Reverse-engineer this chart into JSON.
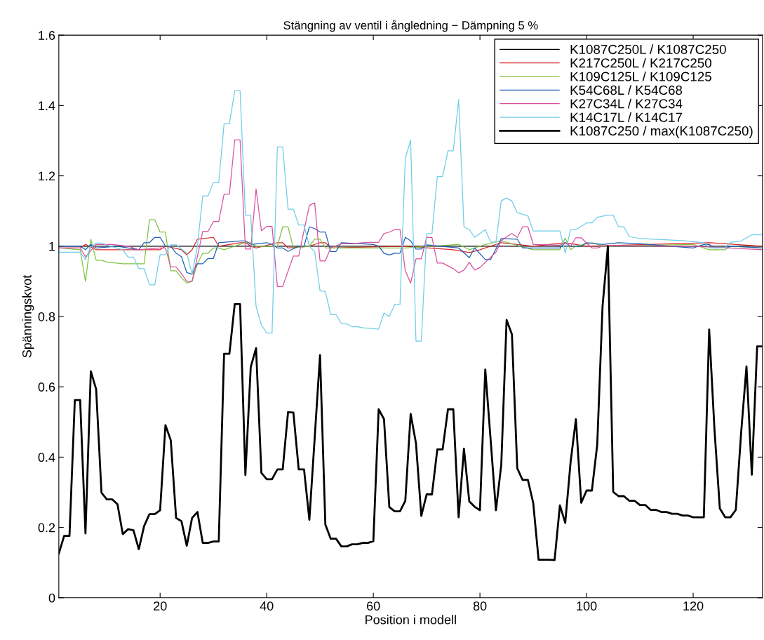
{
  "chart_data": {
    "type": "line",
    "title": "Stängning av ventil i ångledning − Dämpning 5 %",
    "xlabel": "Position i modell",
    "ylabel": "Spänningskvot",
    "xlim": [
      1,
      133
    ],
    "xticks": [
      20,
      40,
      60,
      80,
      100,
      120
    ],
    "ylim": [
      0,
      1.6
    ],
    "yticks": [
      0,
      0.2,
      0.4,
      0.6,
      0.8,
      1,
      1.2,
      1.4,
      1.6
    ],
    "grid": false,
    "legend": "top right",
    "marker": "none",
    "line_style": "solid",
    "series": [
      {
        "name": "K1087C250L / K1087C250",
        "color": "#000000",
        "x": [
          1,
          30,
          60,
          90,
          104,
          133
        ],
        "values": [
          1,
          1,
          1,
          1,
          1,
          1
        ]
      },
      {
        "name": "K217C250L / K217C250",
        "color": "#d62828",
        "x": [
          1,
          5,
          6,
          8,
          20,
          21,
          24,
          25,
          26,
          27,
          30,
          31,
          35,
          36,
          37,
          38,
          42,
          43,
          44,
          48,
          50,
          51,
          52,
          66,
          75,
          78,
          80,
          84,
          90,
          96,
          100,
          123,
          128,
          133
        ],
        "values": [
          0.995,
          0.995,
          1.005,
          0.99,
          0.99,
          1.0,
          0.99,
          0.975,
          0.99,
          1.02,
          1.025,
          1.0,
          1.01,
          1.01,
          1.0,
          0.995,
          1.01,
          1.01,
          0.995,
          1.0,
          1.01,
          1.01,
          0.995,
          1.0,
          0.99,
          0.982,
          0.99,
          1.01,
          1.0,
          1.01,
          1.0,
          1.01,
          1.005,
          1.0
        ]
      },
      {
        "name": "K109C125L / K109C125",
        "color": "#7fc241",
        "x": [
          1,
          5,
          6,
          7,
          8,
          9,
          10,
          13,
          17,
          18,
          19,
          20,
          21,
          22,
          23,
          24,
          25,
          26,
          27,
          28,
          29,
          30,
          31,
          32,
          36,
          37,
          38,
          42,
          43,
          44,
          45,
          48,
          49,
          50,
          51,
          66,
          76,
          78,
          81,
          84,
          90,
          95,
          96,
          97,
          98,
          101,
          103,
          120,
          123,
          126,
          127,
          133
        ],
        "values": [
          0.995,
          0.99,
          0.9,
          1.02,
          0.96,
          0.96,
          0.955,
          0.95,
          0.95,
          1.075,
          1.075,
          1.04,
          1.04,
          0.93,
          0.93,
          0.91,
          0.895,
          0.9,
          0.95,
          0.98,
          0.98,
          0.995,
          0.995,
          0.99,
          1.01,
          1.01,
          1.0,
          1.0,
          1.055,
          1.055,
          0.995,
          1.0,
          1.02,
          1.02,
          0.995,
          0.995,
          1.005,
          0.99,
          1.005,
          1.015,
          0.99,
          0.99,
          1.023,
          0.99,
          1.0,
          1.01,
          1.0,
          1.005,
          0.99,
          0.99,
          1.0,
          0.995
        ]
      },
      {
        "name": "K54C68L / K54C68",
        "color": "#1f5fb5",
        "x": [
          1,
          5,
          6,
          7,
          8,
          12,
          16,
          17,
          18,
          19,
          20,
          21,
          22,
          23,
          24,
          25,
          26,
          27,
          28,
          29,
          30,
          31,
          35,
          36,
          37,
          40,
          41,
          42,
          43,
          44,
          46,
          47,
          48,
          49,
          50,
          51,
          52,
          53,
          54,
          60,
          61,
          62,
          63,
          64,
          65,
          66,
          67,
          68,
          69,
          70,
          76,
          78,
          79,
          81,
          82,
          84,
          87,
          88,
          95,
          96,
          97,
          99,
          100,
          103,
          106,
          110,
          120,
          122,
          123,
          124,
          128,
          133
        ],
        "values": [
          1.0,
          1.0,
          0.99,
          1.005,
          0.995,
          1.0,
          0.99,
          1.01,
          1.01,
          1.025,
          1.025,
          1.0,
          1.0,
          0.98,
          0.97,
          0.925,
          0.92,
          0.95,
          0.95,
          0.965,
          0.965,
          1.01,
          1.015,
          1.015,
          1.005,
          1.01,
          1.005,
          0.995,
          0.995,
          0.985,
          1.0,
          1.0,
          1.055,
          1.05,
          1.04,
          1.04,
          0.985,
          0.985,
          1.01,
          1.005,
          1.0,
          0.98,
          0.975,
          0.98,
          0.98,
          1.025,
          1.015,
          0.992,
          0.992,
          1.004,
          0.995,
          0.967,
          0.995,
          0.962,
          0.962,
          1.022,
          1.02,
          0.995,
          0.995,
          1.01,
          1.0,
          1.0,
          1.01,
          1.005,
          1.01,
          1.007,
          0.995,
          1.005,
          1.005,
          0.995,
          1.0,
          0.995
        ]
      },
      {
        "name": "K27C34L / K27C34",
        "color": "#d9509f",
        "x": [
          1,
          5,
          6,
          8,
          11,
          14,
          16,
          20,
          21,
          22,
          23,
          24,
          25,
          26,
          28,
          29,
          30,
          31,
          32,
          33,
          34,
          35,
          36,
          37,
          38,
          39,
          40,
          41,
          42,
          43,
          45,
          46,
          48,
          49,
          50,
          51,
          52,
          54,
          56,
          59,
          61,
          62,
          63,
          64,
          65,
          66,
          67,
          68,
          69,
          70,
          71,
          72,
          73,
          74,
          75,
          76,
          77,
          78,
          79,
          80,
          81,
          83,
          84,
          85,
          86,
          87,
          88,
          89,
          90,
          95,
          96,
          97,
          98,
          99,
          100,
          101,
          102,
          103,
          104,
          120,
          133
        ],
        "values": [
          0.995,
          0.995,
          0.97,
          1.005,
          1.005,
          1.0,
          0.99,
          0.995,
          0.995,
          0.941,
          0.941,
          0.922,
          0.9,
          0.9,
          1.042,
          1.042,
          1.07,
          1.07,
          1.148,
          1.148,
          1.302,
          1.302,
          0.992,
          0.992,
          1.163,
          1.044,
          1.056,
          1.056,
          0.885,
          0.885,
          0.972,
          0.972,
          1.116,
          1.123,
          0.958,
          0.958,
          0.995,
          1.007,
          1.007,
          1.011,
          1.011,
          1.036,
          1.04,
          1.047,
          1.047,
          0.93,
          0.895,
          0.964,
          0.964,
          1.025,
          1.025,
          0.952,
          0.952,
          0.944,
          0.936,
          0.924,
          0.932,
          0.954,
          0.932,
          0.939,
          0.954,
          0.983,
          1.015,
          1.027,
          1.036,
          1.025,
          1.055,
          1.055,
          1.005,
          1.003,
          1.009,
          1.0,
          1.024,
          1.024,
          1.009,
          0.995,
          0.995,
          1.0,
          1.002,
          1.0,
          0.99
        ]
      },
      {
        "name": "K14C17L / K14C17",
        "color": "#6fcde8",
        "x": [
          1,
          5,
          6,
          7,
          8,
          9,
          10,
          13,
          14,
          15,
          16,
          17,
          18,
          19,
          20,
          21,
          22,
          23,
          25,
          26,
          27,
          28,
          29,
          30,
          31,
          32,
          33,
          34,
          35,
          36,
          37,
          38,
          39,
          40,
          41,
          42,
          43,
          44,
          45,
          46,
          47,
          48,
          49,
          50,
          51,
          52,
          53,
          54,
          55,
          56,
          57,
          58,
          59,
          61,
          62,
          63,
          64,
          65,
          66,
          67,
          68,
          69,
          70,
          71,
          72,
          73,
          74,
          75,
          76,
          77,
          78,
          79,
          81,
          82,
          83,
          84,
          85,
          86,
          87,
          89,
          90,
          95,
          96,
          97,
          98,
          100,
          101,
          102,
          103,
          104,
          105,
          106,
          107,
          108,
          110,
          114,
          118,
          122,
          123,
          126,
          127,
          129,
          131,
          133
        ],
        "values": [
          0.983,
          0.983,
          0.962,
          0.998,
          1.009,
          1.009,
          1.003,
          0.99,
          0.969,
          0.969,
          0.936,
          0.936,
          0.89,
          0.89,
          0.976,
          0.976,
          1.004,
          1.004,
          0.98,
          0.92,
          1.0,
          1.143,
          1.143,
          1.181,
          1.181,
          1.348,
          1.348,
          1.442,
          1.442,
          1.088,
          1.088,
          0.829,
          0.776,
          0.753,
          0.753,
          1.282,
          1.282,
          1.105,
          1.105,
          1.06,
          1.06,
          1.0,
          0.984,
          0.873,
          0.871,
          0.805,
          0.805,
          0.78,
          0.779,
          0.771,
          0.771,
          0.768,
          0.767,
          0.764,
          0.81,
          0.8,
          0.834,
          0.834,
          1.25,
          1.302,
          0.73,
          0.73,
          1.035,
          1.036,
          1.198,
          1.198,
          1.271,
          1.271,
          1.417,
          1.055,
          1.047,
          1.025,
          1.047,
          1.012,
          1.012,
          1.129,
          1.137,
          1.128,
          1.095,
          1.086,
          1.043,
          1.043,
          0.981,
          1.047,
          1.047,
          1.066,
          1.066,
          1.082,
          1.085,
          1.088,
          1.088,
          1.055,
          1.055,
          1.027,
          1.022,
          1.019,
          1.016,
          1.01,
          0.995,
          0.996,
          1.011,
          1.015,
          1.032,
          1.032
        ]
      },
      {
        "name": "K1087C250 / max(K1087C250)",
        "color": "#000000",
        "x": [
          1,
          2,
          3,
          4,
          5,
          6,
          7,
          8,
          9,
          10,
          11,
          12,
          13,
          14,
          15,
          16,
          17,
          18,
          19,
          20,
          21,
          22,
          23,
          24,
          25,
          26,
          27,
          28,
          29,
          30,
          31,
          32,
          33,
          34,
          35,
          36,
          37,
          38,
          39,
          40,
          41,
          42,
          43,
          44,
          45,
          46,
          47,
          48,
          49,
          50,
          51,
          52,
          53,
          54,
          55,
          56,
          57,
          58,
          59,
          60,
          61,
          62,
          63,
          64,
          65,
          66,
          67,
          68,
          69,
          70,
          71,
          72,
          73,
          74,
          75,
          76,
          77,
          78,
          79,
          80,
          81,
          82,
          83,
          84,
          85,
          86,
          87,
          88,
          89,
          90,
          91,
          92,
          93,
          94,
          95,
          96,
          97,
          98,
          99,
          100,
          101,
          102,
          103,
          104,
          105,
          106,
          107,
          108,
          109,
          110,
          111,
          112,
          113,
          114,
          115,
          116,
          117,
          118,
          119,
          120,
          121,
          122,
          123,
          124,
          125,
          126,
          127,
          128,
          129,
          130,
          131,
          132,
          133
        ],
        "values": [
          0.126,
          0.176,
          0.176,
          0.562,
          0.562,
          0.183,
          0.644,
          0.593,
          0.299,
          0.28,
          0.28,
          0.266,
          0.181,
          0.195,
          0.192,
          0.138,
          0.204,
          0.238,
          0.238,
          0.249,
          0.491,
          0.448,
          0.227,
          0.218,
          0.148,
          0.227,
          0.244,
          0.156,
          0.156,
          0.16,
          0.16,
          0.694,
          0.694,
          0.835,
          0.835,
          0.349,
          0.656,
          0.71,
          0.355,
          0.337,
          0.337,
          0.365,
          0.365,
          0.528,
          0.527,
          0.365,
          0.365,
          0.222,
          0.455,
          0.69,
          0.208,
          0.168,
          0.168,
          0.146,
          0.146,
          0.152,
          0.152,
          0.156,
          0.156,
          0.161,
          0.536,
          0.508,
          0.258,
          0.246,
          0.246,
          0.276,
          0.523,
          0.439,
          0.233,
          0.294,
          0.294,
          0.422,
          0.422,
          0.536,
          0.536,
          0.229,
          0.424,
          0.274,
          0.259,
          0.249,
          0.649,
          0.45,
          0.249,
          0.378,
          0.79,
          0.749,
          0.368,
          0.335,
          0.335,
          0.269,
          0.108,
          0.108,
          0.108,
          0.107,
          0.263,
          0.213,
          0.385,
          0.508,
          0.27,
          0.305,
          0.305,
          0.435,
          0.829,
          1.0,
          0.301,
          0.289,
          0.289,
          0.276,
          0.276,
          0.264,
          0.264,
          0.25,
          0.25,
          0.244,
          0.244,
          0.239,
          0.239,
          0.234,
          0.234,
          0.229,
          0.229,
          0.229,
          0.763,
          0.478,
          0.254,
          0.229,
          0.229,
          0.25,
          0.47,
          0.658,
          0.35,
          0.715,
          0.715
        ]
      }
    ]
  }
}
